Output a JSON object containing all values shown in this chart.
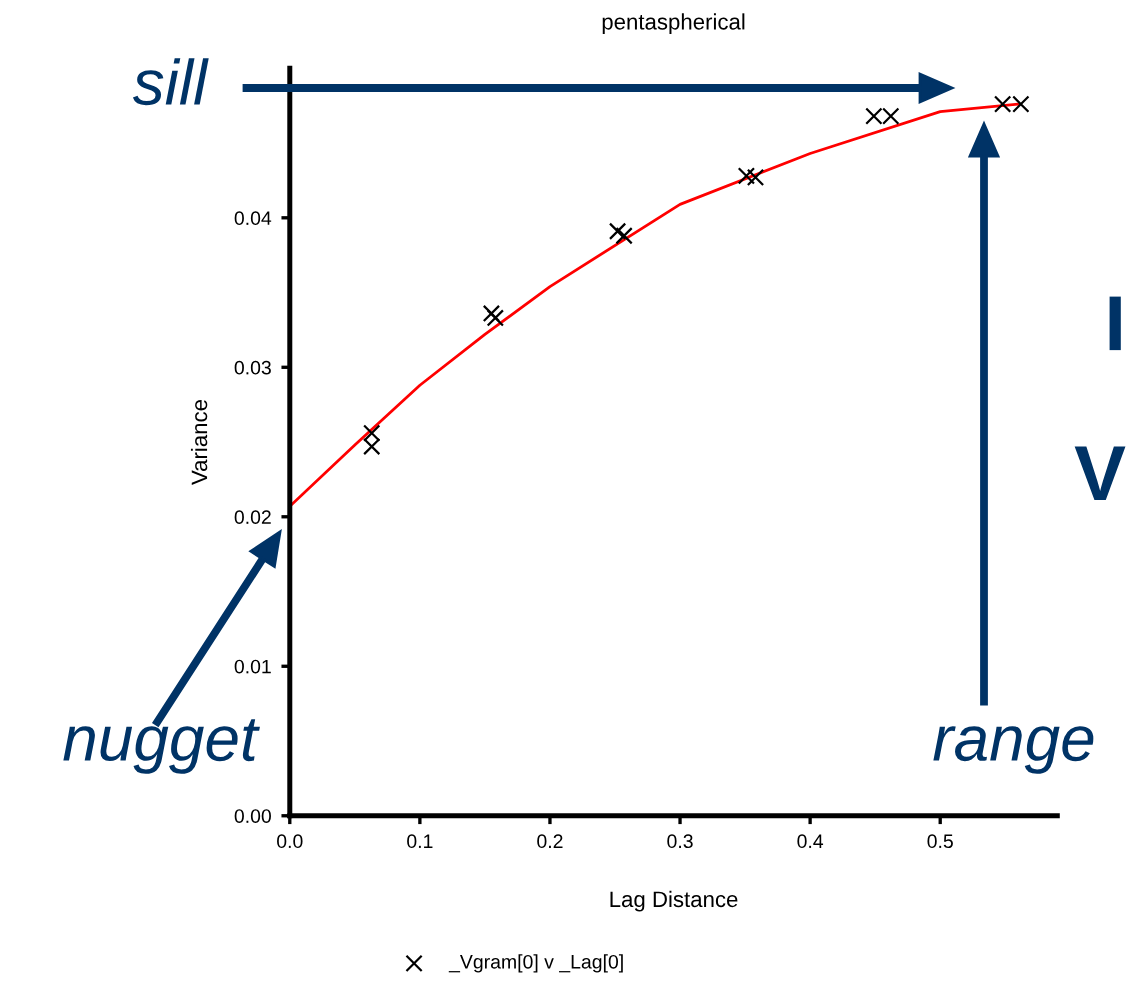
{
  "chart_data": {
    "type": "scatter",
    "title": "pentaspherical",
    "xlabel": "Lag Distance",
    "ylabel": "Variance",
    "xlim": [
      0,
      0.59
    ],
    "ylim": [
      0,
      0.05
    ],
    "xticks": [
      {
        "value": 0,
        "label": "0.0"
      },
      {
        "value": 0.1,
        "label": "0.1"
      },
      {
        "value": 0.2,
        "label": "0.2"
      },
      {
        "value": 0.3,
        "label": "0.3"
      },
      {
        "value": 0.4,
        "label": "0.4"
      },
      {
        "value": 0.5,
        "label": "0.5"
      }
    ],
    "yticks": [
      {
        "value": 0,
        "label": "0.00"
      },
      {
        "value": 0.01,
        "label": "0.01"
      },
      {
        "value": 0.02,
        "label": "0.02"
      },
      {
        "value": 0.03,
        "label": "0.03"
      },
      {
        "value": 0.04,
        "label": "0.04"
      }
    ],
    "series": [
      {
        "name": "_Vgram[0] v _Lag[0]",
        "marker": "cross",
        "color": "#000000",
        "x": [
          0.063,
          0.063,
          0.155,
          0.158,
          0.252,
          0.257,
          0.351,
          0.358,
          0.449,
          0.462,
          0.548,
          0.562
        ],
        "values": [
          0.0256,
          0.0247,
          0.0336,
          0.0333,
          0.0391,
          0.0388,
          0.0428,
          0.0427,
          0.0468,
          0.0468,
          0.0476,
          0.0476
        ]
      },
      {
        "type": "line",
        "color": "#ff0000",
        "x": [
          0,
          0.05,
          0.1,
          0.15,
          0.2,
          0.3,
          0.4,
          0.5,
          0.56
        ],
        "values": [
          0.0207,
          0.0248,
          0.0288,
          0.0322,
          0.0354,
          0.0409,
          0.0443,
          0.0471,
          0.0476
        ]
      }
    ],
    "legend": "bottom",
    "grid": false,
    "annotations": [
      "sill",
      "nugget",
      "range",
      "I",
      "V"
    ]
  }
}
